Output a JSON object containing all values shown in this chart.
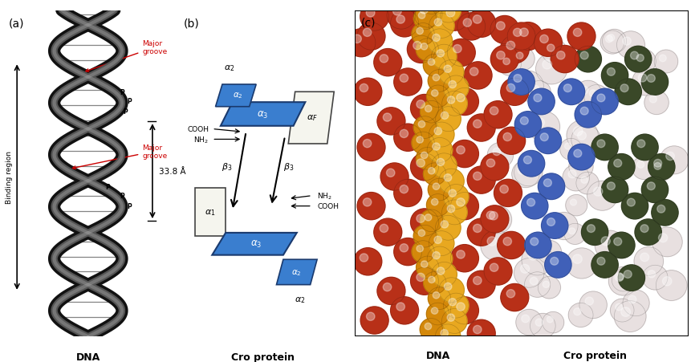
{
  "background_color": "#ffffff",
  "fig_width": 8.61,
  "fig_height": 4.52,
  "dna_label": "DNA",
  "cro_label": "Cro protein",
  "binding_region_label": "Binding region",
  "major_groove_label": "Major\ngroove",
  "measurement_label": "33.8 Å",
  "annotation_color_red": "#cc0000",
  "alpha_helix_color": "#3a7ecf",
  "panel_c_bg": "#ffffff",
  "ball_colors": {
    "red": "#b83018",
    "orange": "#d4880a",
    "yellow": "#e8a820",
    "blue": "#4060b8",
    "white": "#e8e0e0",
    "green": "#3a4828",
    "pink": "#d8b8b0"
  }
}
